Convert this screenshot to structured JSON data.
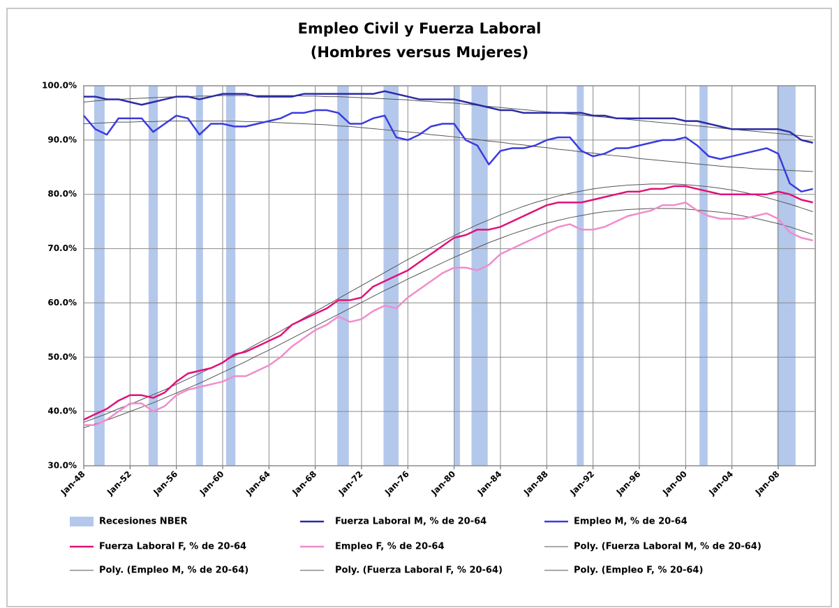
{
  "chart_data": {
    "type": "line",
    "title": "Empleo Civil y Fuerza Laboral",
    "subtitle": "(Hombres versus Mujeres)",
    "x": [
      1948,
      1949,
      1950,
      1951,
      1952,
      1953,
      1954,
      1955,
      1956,
      1957,
      1958,
      1959,
      1960,
      1961,
      1962,
      1963,
      1964,
      1965,
      1966,
      1967,
      1968,
      1969,
      1970,
      1971,
      1972,
      1973,
      1974,
      1975,
      1976,
      1977,
      1978,
      1979,
      1980,
      1981,
      1982,
      1983,
      1984,
      1985,
      1986,
      1987,
      1988,
      1989,
      1990,
      1991,
      1992,
      1993,
      1994,
      1995,
      1996,
      1997,
      1998,
      1999,
      2000,
      2001,
      2002,
      2003,
      2004,
      2005,
      2006,
      2007,
      2008,
      2009,
      2010,
      2011
    ],
    "xlim": [
      1948,
      2011.2
    ],
    "xticks": [
      {
        "value": 1948,
        "label": "Jan-48"
      },
      {
        "value": 1952,
        "label": "Jan-52"
      },
      {
        "value": 1956,
        "label": "Jan-56"
      },
      {
        "value": 1960,
        "label": "Jan-60"
      },
      {
        "value": 1964,
        "label": "Jan-64"
      },
      {
        "value": 1968,
        "label": "Jan-68"
      },
      {
        "value": 1972,
        "label": "Jan-72"
      },
      {
        "value": 1976,
        "label": "Jan-76"
      },
      {
        "value": 1980,
        "label": "Jan-80"
      },
      {
        "value": 1984,
        "label": "Jan-84"
      },
      {
        "value": 1988,
        "label": "Jan-88"
      },
      {
        "value": 1992,
        "label": "Jan-92"
      },
      {
        "value": 1996,
        "label": "Jan-96"
      },
      {
        "value": 2000,
        "label": "Jan-00"
      },
      {
        "value": 2004,
        "label": "Jan-04"
      },
      {
        "value": 2008,
        "label": "Jan-08"
      }
    ],
    "ylim": [
      30,
      100
    ],
    "yticks": [
      {
        "value": 30,
        "label": "30.0%"
      },
      {
        "value": 40,
        "label": "40.0%"
      },
      {
        "value": 50,
        "label": "50.0%"
      },
      {
        "value": 60,
        "label": "60.0%"
      },
      {
        "value": 70,
        "label": "70.0%"
      },
      {
        "value": 80,
        "label": "80.0%"
      },
      {
        "value": 90,
        "label": "90.0%"
      },
      {
        "value": 100,
        "label": "100.0%"
      }
    ],
    "grid": true,
    "bands": {
      "name": "Recesiones NBER",
      "color": "#b4c8ec",
      "ranges": [
        [
          1948.9,
          1949.8
        ],
        [
          1953.6,
          1954.4
        ],
        [
          1957.7,
          1958.3
        ],
        [
          1960.3,
          1961.1
        ],
        [
          1969.9,
          1970.9
        ],
        [
          1973.9,
          1975.2
        ],
        [
          1980.0,
          1980.5
        ],
        [
          1981.5,
          1982.9
        ],
        [
          1990.6,
          1991.2
        ],
        [
          2001.2,
          2001.9
        ],
        [
          2007.9,
          2009.5
        ]
      ]
    },
    "series": [
      {
        "name": "Fuerza Laboral M, % de 20-64",
        "color": "#2a2aa6",
        "line_width": 2.5,
        "values": [
          98,
          98,
          97.5,
          97.5,
          97,
          96.5,
          97,
          97.5,
          98,
          98,
          97.5,
          98,
          98.5,
          98.5,
          98.5,
          98,
          98,
          98,
          98,
          98.5,
          98.5,
          98.5,
          98.5,
          98.5,
          98.5,
          98.5,
          99,
          98.5,
          98,
          97.5,
          97.5,
          97.5,
          97.5,
          97,
          96.5,
          96,
          95.5,
          95.5,
          95,
          95,
          95,
          95,
          95,
          95,
          94.5,
          94.5,
          94,
          94,
          94,
          94,
          94,
          94,
          93.5,
          93.5,
          93,
          92.5,
          92,
          92,
          92,
          92,
          92,
          91.5,
          90,
          89.5
        ]
      },
      {
        "name": "Empleo M, % de 20-64",
        "color": "#3a3ae0",
        "line_width": 2.5,
        "values": [
          94.5,
          92,
          91,
          94,
          94,
          94,
          91.5,
          93,
          94.5,
          94,
          91,
          93,
          93,
          92.5,
          92.5,
          93,
          93.5,
          94,
          95,
          95,
          95.5,
          95.5,
          95,
          93,
          93,
          94,
          94.5,
          90.5,
          90,
          91,
          92.5,
          93,
          93,
          90,
          89,
          85.5,
          88,
          88.5,
          88.5,
          89,
          90,
          90.5,
          90.5,
          88,
          87,
          87.5,
          88.5,
          88.5,
          89,
          89.5,
          90,
          90,
          90.5,
          89,
          87,
          86.5,
          87,
          87.5,
          88,
          88.5,
          87.5,
          82,
          80.5,
          81
        ]
      },
      {
        "name": "Fuerza Laboral F, % de 20-64",
        "color": "#e0107a",
        "line_width": 2.5,
        "values": [
          38.5,
          39.5,
          40.5,
          42,
          43,
          43,
          42.5,
          43.5,
          45.5,
          47,
          47.5,
          48,
          49,
          50.5,
          51,
          52,
          53,
          54,
          56,
          57,
          58,
          59,
          60.5,
          60.5,
          61,
          63,
          64,
          65,
          66,
          67.5,
          69,
          70.5,
          72,
          72.5,
          73.5,
          73.5,
          74,
          75,
          76,
          77,
          78,
          78.5,
          78.5,
          78.5,
          79,
          79.5,
          80,
          80.5,
          80.5,
          81,
          81,
          81.5,
          81.5,
          81,
          80.5,
          80,
          80,
          80,
          80,
          80,
          80.5,
          80,
          79,
          78.5
        ]
      },
      {
        "name": "Empleo F, % de 20-64",
        "color": "#f08ccc",
        "line_width": 2.5,
        "values": [
          37.5,
          37.5,
          38.5,
          40,
          41.5,
          41.5,
          40,
          41,
          43,
          44,
          44.5,
          45,
          45.5,
          46.5,
          46.5,
          47.5,
          48.5,
          50,
          52,
          53.5,
          55,
          56,
          57.5,
          56.5,
          57,
          58.5,
          59.5,
          59,
          61,
          62.5,
          64,
          65.5,
          66.5,
          66.5,
          66,
          67,
          69,
          70,
          71,
          72,
          73,
          74,
          74.5,
          73.5,
          73.5,
          74,
          75,
          76,
          76.5,
          77,
          78,
          78,
          78.5,
          77,
          76,
          75.5,
          75.5,
          75.5,
          76,
          76.5,
          75.5,
          73,
          72,
          71.5
        ]
      },
      {
        "name": "Poly. (Fuerza Laboral M, % de 20-64)",
        "color": "#555555",
        "line_width": 1,
        "values": [
          97,
          97.2,
          97.4,
          97.5,
          97.6,
          97.7,
          97.8,
          97.9,
          98,
          98,
          98.1,
          98.1,
          98.2,
          98.2,
          98.2,
          98.2,
          98.2,
          98.2,
          98.2,
          98.1,
          98.1,
          98,
          98,
          97.9,
          97.8,
          97.7,
          97.6,
          97.5,
          97.4,
          97.2,
          97.1,
          96.9,
          96.8,
          96.6,
          96.4,
          96.2,
          96,
          95.8,
          95.6,
          95.4,
          95.2,
          95,
          94.8,
          94.6,
          94.4,
          94.2,
          94,
          93.8,
          93.6,
          93.4,
          93.2,
          93,
          92.8,
          92.6,
          92.4,
          92.2,
          92,
          91.8,
          91.6,
          91.4,
          91.2,
          91,
          90.8,
          90.6
        ]
      },
      {
        "name": "Poly. (Empleo M, % de 20-64)",
        "color": "#555555",
        "line_width": 1,
        "values": [
          93,
          93.1,
          93.2,
          93.3,
          93.3,
          93.4,
          93.4,
          93.5,
          93.5,
          93.5,
          93.5,
          93.5,
          93.5,
          93.5,
          93.4,
          93.4,
          93.3,
          93.2,
          93.1,
          93,
          92.9,
          92.8,
          92.6,
          92.5,
          92.3,
          92.1,
          91.9,
          91.7,
          91.5,
          91.3,
          91,
          90.8,
          90.6,
          90.3,
          90.1,
          89.8,
          89.6,
          89.3,
          89.1,
          88.8,
          88.6,
          88.3,
          88.1,
          87.8,
          87.6,
          87.3,
          87.1,
          86.9,
          86.6,
          86.4,
          86.2,
          86,
          85.8,
          85.6,
          85.4,
          85.2,
          85,
          84.9,
          84.7,
          84.6,
          84.5,
          84.4,
          84.3,
          84.2
        ]
      },
      {
        "name": "Poly. (Fuerza Laboral F, % 20-64)",
        "color": "#555555",
        "line_width": 1,
        "values": [
          38,
          38.8,
          39.6,
          40.5,
          41.3,
          42.2,
          43.1,
          44,
          45,
          46,
          47,
          48,
          49.1,
          50.2,
          51.3,
          52.5,
          53.6,
          54.8,
          56,
          57.2,
          58.4,
          59.6,
          60.8,
          62,
          63.2,
          64.4,
          65.6,
          66.8,
          68,
          69.1,
          70.2,
          71.3,
          72.4,
          73.4,
          74.4,
          75.3,
          76.2,
          77,
          77.8,
          78.5,
          79.1,
          79.7,
          80.2,
          80.6,
          81,
          81.3,
          81.5,
          81.7,
          81.8,
          81.9,
          81.9,
          81.9,
          81.8,
          81.6,
          81.4,
          81.1,
          80.8,
          80.4,
          79.9,
          79.4,
          78.8,
          78.2,
          77.5,
          76.8
        ]
      },
      {
        "name": "Poly. (Empleo F, % 20-64)",
        "color": "#555555",
        "line_width": 1,
        "values": [
          37,
          37.7,
          38.4,
          39.2,
          40,
          40.8,
          41.6,
          42.5,
          43.4,
          44.3,
          45.2,
          46.2,
          47.2,
          48.2,
          49.2,
          50.3,
          51.3,
          52.4,
          53.5,
          54.6,
          55.7,
          56.8,
          57.9,
          59,
          60.1,
          61.2,
          62.3,
          63.3,
          64.4,
          65.4,
          66.4,
          67.4,
          68.4,
          69.3,
          70.2,
          71.1,
          71.9,
          72.7,
          73.4,
          74.1,
          74.7,
          75.2,
          75.7,
          76.1,
          76.5,
          76.8,
          77,
          77.2,
          77.3,
          77.4,
          77.4,
          77.4,
          77.3,
          77.1,
          76.9,
          76.7,
          76.4,
          76,
          75.6,
          75.1,
          74.6,
          74,
          73.3,
          72.6
        ]
      }
    ]
  }
}
